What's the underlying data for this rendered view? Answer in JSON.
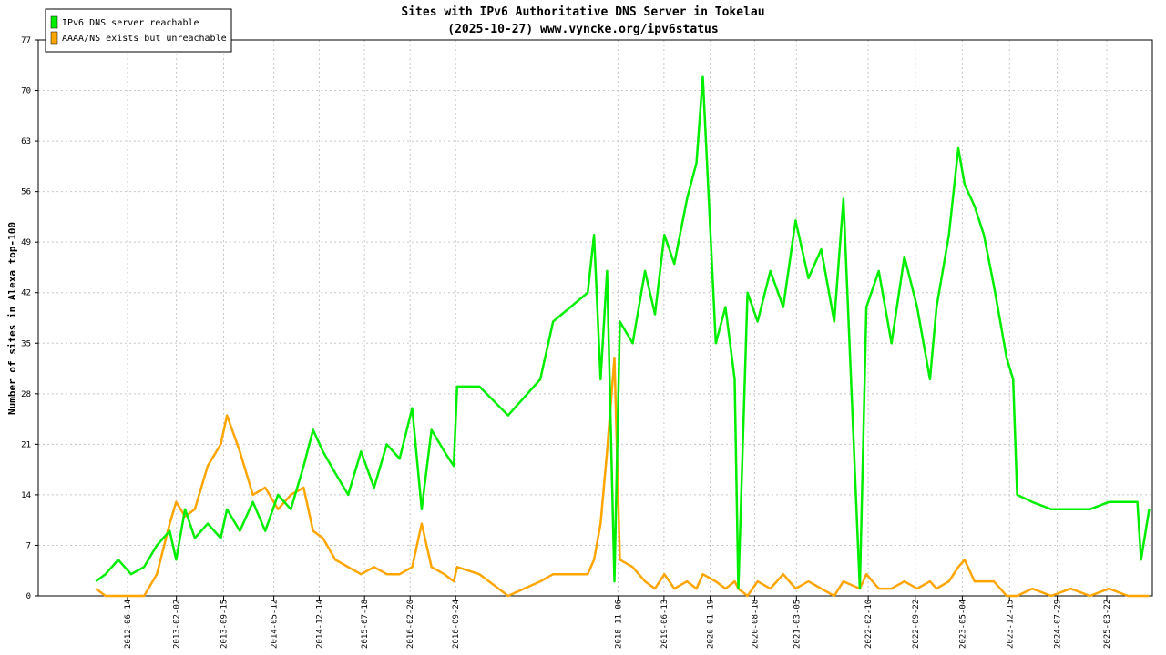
{
  "chart_data": {
    "type": "line",
    "title": "Sites with IPv6 Authoritative DNS Server in Tokelau",
    "subtitle": "(2025-10-27) www.vyncke.org/ipv6status",
    "y_label": "Number of sites in Alexa top-100",
    "legend": "upper left",
    "grid": true,
    "x": [
      "2012-01-15",
      "2012-03-01",
      "2012-05-01",
      "2012-07-01",
      "2012-09-01",
      "2012-11-01",
      "2013-01-01",
      "2013-02-01",
      "2013-03-15",
      "2013-05-01",
      "2013-07-01",
      "2013-09-01",
      "2013-10-01",
      "2013-12-01",
      "2014-02-01",
      "2014-04-01",
      "2014-06-01",
      "2014-08-01",
      "2014-10-01",
      "2014-11-15",
      "2015-01-01",
      "2015-03-01",
      "2015-05-01",
      "2015-07-01",
      "2015-09-01",
      "2015-11-01",
      "2016-01-01",
      "2016-03-01",
      "2016-04-15",
      "2016-06-01",
      "2016-08-01",
      "2016-09-15",
      "2016-10-01",
      "2017-01-15",
      "2017-06-01",
      "2017-11-01",
      "2018-01-01",
      "2018-06-15",
      "2018-07-15",
      "2018-08-15",
      "2018-09-15",
      "2018-10-20",
      "2018-11-15",
      "2019-01-15",
      "2019-03-15",
      "2019-05-01",
      "2019-06-15",
      "2019-08-01",
      "2019-10-01",
      "2019-11-15",
      "2019-12-15",
      "2020-02-15",
      "2020-04-01",
      "2020-05-15",
      "2020-06-01",
      "2020-07-15",
      "2020-09-01",
      "2020-11-01",
      "2021-01-01",
      "2021-03-01",
      "2021-05-01",
      "2021-07-01",
      "2021-09-01",
      "2021-10-15",
      "2022-01-01",
      "2022-02-01",
      "2022-04-01",
      "2022-06-01",
      "2022-08-01",
      "2022-10-01",
      "2022-12-01",
      "2023-01-01",
      "2023-03-01",
      "2023-04-15",
      "2023-05-15",
      "2023-07-01",
      "2023-08-15",
      "2023-10-01",
      "2023-11-01",
      "2023-12-01",
      "2024-01-01",
      "2024-01-20",
      "2024-04-01",
      "2024-07-01",
      "2024-10-01",
      "2025-01-01",
      "2025-04-01",
      "2025-07-01",
      "2025-08-15",
      "2025-09-01",
      "2025-10-10"
    ],
    "series": [
      {
        "name": "IPv6 DNS server reachable",
        "color": "#00ee00",
        "values": [
          2,
          3,
          5,
          3,
          4,
          7,
          9,
          5,
          12,
          8,
          10,
          8,
          12,
          9,
          13,
          9,
          14,
          12,
          18,
          23,
          20,
          17,
          14,
          20,
          15,
          21,
          19,
          26,
          12,
          23,
          20,
          18,
          29,
          29,
          25,
          30,
          38,
          42,
          50,
          30,
          45,
          2,
          38,
          35,
          45,
          39,
          50,
          46,
          55,
          60,
          72,
          35,
          40,
          30,
          1,
          42,
          38,
          45,
          40,
          52,
          44,
          48,
          38,
          55,
          1,
          40,
          45,
          35,
          47,
          40,
          30,
          40,
          50,
          62,
          57,
          54,
          50,
          43,
          38,
          33,
          30,
          14,
          13,
          12,
          12,
          12,
          13,
          13,
          13,
          5,
          12
        ]
      },
      {
        "name": "AAAA/NS exists but unreachable",
        "color": "#ffa500",
        "values": [
          1,
          0,
          0,
          0,
          0,
          3,
          10,
          13,
          11,
          12,
          18,
          21,
          25,
          20,
          14,
          15,
          12,
          14,
          15,
          9,
          8,
          5,
          4,
          3,
          4,
          3,
          3,
          4,
          10,
          4,
          3,
          2,
          4,
          3,
          0,
          2,
          3,
          3,
          5,
          10,
          20,
          33,
          5,
          4,
          2,
          1,
          3,
          1,
          2,
          1,
          3,
          2,
          1,
          2,
          1,
          0,
          2,
          1,
          3,
          1,
          2,
          1,
          0,
          2,
          1,
          3,
          1,
          1,
          2,
          1,
          2,
          1,
          2,
          4,
          5,
          2,
          2,
          2,
          1,
          0,
          0,
          0,
          1,
          0,
          1,
          0,
          1,
          0,
          0,
          0,
          0
        ]
      }
    ],
    "xlim": [
      "2011-04-16",
      "2025-10-25"
    ],
    "xticks": [
      "2012-06-14",
      "2013-02-02",
      "2013-09-15",
      "2014-05-12",
      "2014-12-14",
      "2015-07-18",
      "2016-02-20",
      "2016-09-24",
      "2018-11-06",
      "2019-06-13",
      "2020-01-19",
      "2020-08-18",
      "2021-03-05",
      "2022-02-10",
      "2022-09-22",
      "2023-05-04",
      "2023-12-15",
      "2024-07-29",
      "2025-03-22"
    ],
    "ylim": [
      0,
      77
    ],
    "yticks": [
      0,
      7,
      14,
      21,
      28,
      35,
      42,
      49,
      56,
      63,
      70,
      77
    ]
  }
}
